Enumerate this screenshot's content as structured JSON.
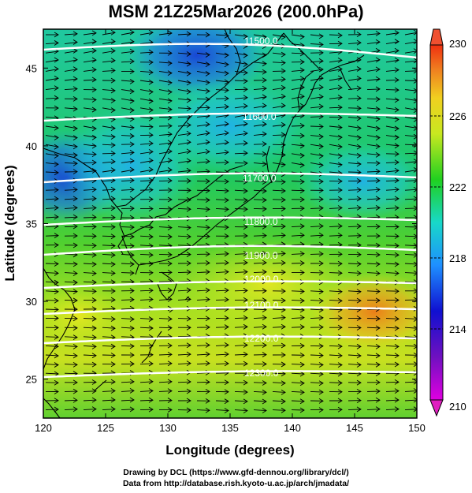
{
  "title": "MSM 21Z25Mar2026 (200.0hPa)",
  "xlabel": "Longitude (degrees)",
  "ylabel": "Latitude  (degrees)",
  "credits": {
    "line1": "Drawing by DCL (https://www.gfd-dennou.org/library/dcl/)",
    "line2": "Data from http://database.rish.kyoto-u.ac.jp/arch/jmadata/"
  },
  "chart_data": {
    "type": "heatmap",
    "xlim": [
      120,
      150
    ],
    "ylim": [
      22.5,
      47.5
    ],
    "xticks": [
      "120",
      "125",
      "130",
      "135",
      "140",
      "145",
      "150"
    ],
    "yticks": [
      "25",
      "30",
      "35",
      "40",
      "45"
    ],
    "colorbar": {
      "min": 210,
      "max": 230,
      "tick_labels": [
        "230",
        "226",
        "222",
        "218",
        "214",
        "210"
      ],
      "colors": [
        "#e000e0",
        "#1010d0",
        "#1e90ff",
        "#18d8c8",
        "#20d020",
        "#c8e820",
        "#f0f020",
        "#f0a020",
        "#f03010"
      ]
    },
    "contours": [
      {
        "label": "11500.0"
      },
      {
        "label": "11600.0"
      },
      {
        "label": "11700.0"
      },
      {
        "label": "11800.0"
      },
      {
        "label": "11900.0"
      },
      {
        "label": "12000.0"
      },
      {
        "label": "12100.0"
      },
      {
        "label": "12200.0"
      },
      {
        "label": "12300.0"
      }
    ],
    "wind_vectors": "westerly"
  }
}
